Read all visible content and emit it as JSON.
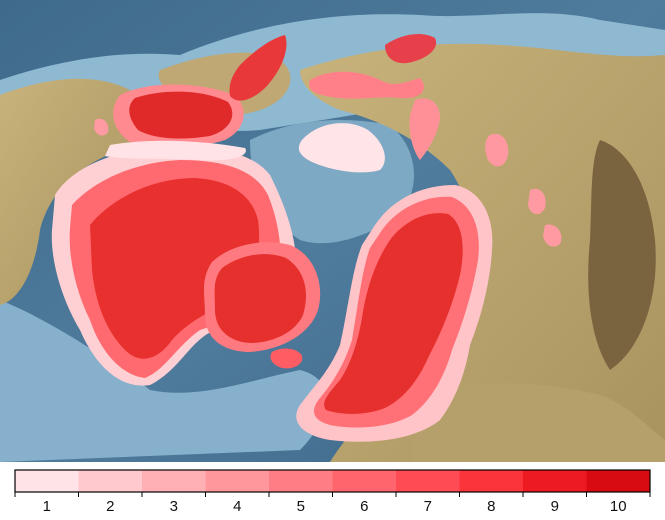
{
  "legend": {
    "labels": [
      "1",
      "2",
      "3",
      "4",
      "5",
      "6",
      "7",
      "8",
      "9",
      "10"
    ],
    "colors": [
      "#ffe3e6",
      "#ffc9cd",
      "#ffb0b5",
      "#ff979d",
      "#ff7e85",
      "#ff656c",
      "#ff4c54",
      "#fb333b",
      "#ee1a22",
      "#d80c10"
    ]
  },
  "map": {
    "ocean_color": "#5b84a3",
    "shelf_color": "#9cc2d8",
    "land_color": "#c8b27a"
  }
}
